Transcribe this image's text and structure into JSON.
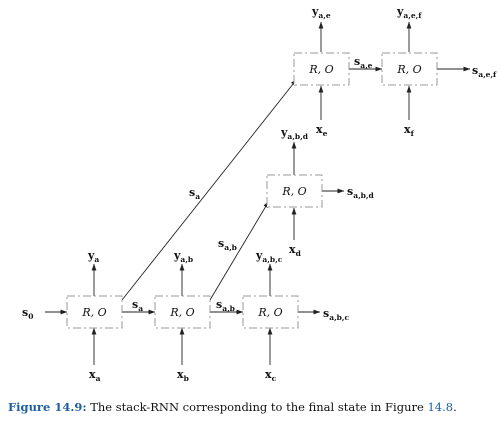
{
  "diagram": {
    "cell_text": "R, O",
    "cells": [
      {
        "id": "a"
      },
      {
        "id": "b"
      },
      {
        "id": "c"
      },
      {
        "id": "d"
      },
      {
        "id": "e"
      },
      {
        "id": "f"
      }
    ],
    "labels": {
      "s0": {
        "base": "s",
        "sub": "0"
      },
      "sa_1": {
        "base": "s",
        "sub": "a"
      },
      "sab_1": {
        "base": "s",
        "sub": "a,b"
      },
      "sabc": {
        "base": "s",
        "sub": "a,b,c"
      },
      "sab_2": {
        "base": "s",
        "sub": "a,b"
      },
      "sabd": {
        "base": "s",
        "sub": "a,b,d"
      },
      "sa_2": {
        "base": "s",
        "sub": "a"
      },
      "sae": {
        "base": "s",
        "sub": "a,e"
      },
      "saef": {
        "base": "s",
        "sub": "a,e,f"
      },
      "xa": {
        "base": "x",
        "sub": "a"
      },
      "xb": {
        "base": "x",
        "sub": "b"
      },
      "xc": {
        "base": "x",
        "sub": "c"
      },
      "xd": {
        "base": "x",
        "sub": "d"
      },
      "xe": {
        "base": "x",
        "sub": "e"
      },
      "xf": {
        "base": "x",
        "sub": "f"
      },
      "ya": {
        "base": "y",
        "sub": "a"
      },
      "yab": {
        "base": "y",
        "sub": "a,b"
      },
      "yabc": {
        "base": "y",
        "sub": "a,b,c"
      },
      "yabd": {
        "base": "y",
        "sub": "a,b,d"
      },
      "yae": {
        "base": "y",
        "sub": "a,e"
      },
      "yaef": {
        "base": "y",
        "sub": "a,e,f"
      }
    }
  },
  "caption": {
    "label": "Figure 14.9:",
    "text": " The stack-RNN corresponding to the final state in Figure ",
    "ref": "14.8",
    "end": "."
  }
}
